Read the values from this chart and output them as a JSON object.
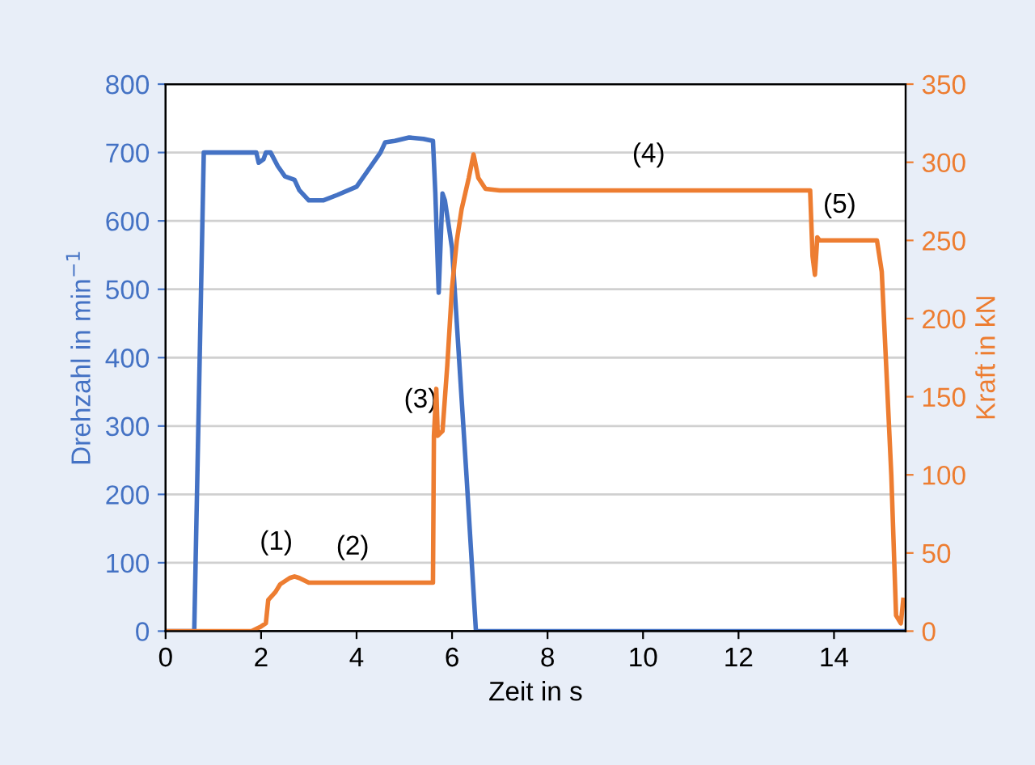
{
  "chart_data": {
    "type": "line",
    "xlabel": "Zeit in s",
    "ylabel": "Drehzahl in min$^{−1}$",
    "y2label": "Kraft in kN",
    "xlim": [
      0,
      15.5
    ],
    "xticks": [
      0,
      2,
      4,
      6,
      8,
      10,
      12,
      14
    ],
    "ylim": [
      0,
      800
    ],
    "yticks": [
      0,
      100,
      200,
      300,
      400,
      500,
      600,
      700,
      800
    ],
    "y2lim": [
      0,
      350
    ],
    "y2ticks": [
      0,
      50,
      100,
      150,
      200,
      250,
      300,
      350
    ],
    "grid": "y",
    "legend": false,
    "series": [
      {
        "color": "#4472c4",
        "x": [
          0,
          0.6,
          0.8,
          1.9,
          1.95,
          2.05,
          2.1,
          2.2,
          2.35,
          2.5,
          2.7,
          2.8,
          3.0,
          3.3,
          3.6,
          4.0,
          4.2,
          4.5,
          4.6,
          4.8,
          5.1,
          5.4,
          5.6,
          5.65,
          5.72,
          5.8,
          5.85,
          6.0,
          6.3,
          6.5,
          15.5
        ],
        "values": [
          0,
          0,
          700,
          700,
          685,
          690,
          700,
          700,
          680,
          665,
          660,
          645,
          630,
          630,
          638,
          650,
          670,
          700,
          715,
          717,
          722,
          720,
          717,
          640,
          495,
          640,
          630,
          560,
          230,
          0,
          0
        ]
      },
      {
        "color": "#ed7d31",
        "axis": "y2",
        "x": [
          0,
          1.8,
          2.0,
          2.1,
          2.15,
          2.3,
          2.4,
          2.6,
          2.7,
          2.8,
          3.0,
          5.6,
          5.62,
          5.67,
          5.7,
          5.8,
          5.9,
          6.0,
          6.1,
          6.2,
          6.35,
          6.45,
          6.55,
          6.7,
          7,
          13.5,
          13.55,
          13.6,
          13.65,
          13.7,
          14.9,
          15.0,
          15.2,
          15.3,
          15.4,
          15.45
        ],
        "values": [
          0,
          0,
          3,
          5,
          20,
          25,
          30,
          34,
          35,
          34,
          31,
          31,
          125,
          155,
          125,
          128,
          170,
          220,
          250,
          270,
          290,
          305,
          290,
          283,
          282,
          282,
          240,
          228,
          252,
          250,
          250,
          230,
          100,
          10,
          5,
          20
        ]
      }
    ],
    "annotations": [
      {
        "text": "(1)",
        "x": 2.6,
        "y": 78
      },
      {
        "text": "(2)",
        "x": 4.2,
        "y": 71
      },
      {
        "text": "(3)",
        "x": 5.62,
        "y": 286
      },
      {
        "text": "(4)",
        "x": 10.4,
        "y": 645
      },
      {
        "text": "(5)",
        "x": 14.4,
        "y": 571
      }
    ]
  }
}
